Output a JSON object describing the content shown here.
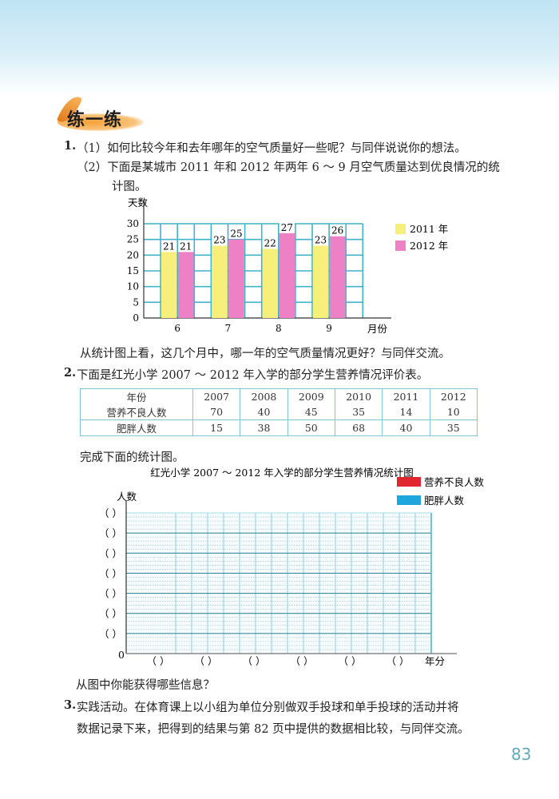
{
  "section_title": "练一练",
  "q1": {
    "number": "1.",
    "part1": "（1）如何比较今年和去年哪年的空气质量好一些呢？与同伴说说你的想法。",
    "part2_line1": "（2）下面是某城市 2011 年和 2012 年两年 6 ～ 9 月空气质量达到优良情况的统",
    "part2_line2": "计图。",
    "question": "从统计图上看，这几个月中，哪一年的空气质量情况更好？与同伴交流。"
  },
  "chart_data": [
    {
      "type": "bar",
      "title": "",
      "ylabel": "天数",
      "xlabel": "月份",
      "categories": [
        "6",
        "7",
        "8",
        "9"
      ],
      "ylim": [
        0,
        30
      ],
      "yticks": [
        0,
        5,
        10,
        15,
        20,
        25,
        30
      ],
      "grid": true,
      "legend_position": "right",
      "series": [
        {
          "name": "2011 年",
          "values": [
            21,
            23,
            22,
            23
          ],
          "color": "#f7ef7c"
        },
        {
          "name": "2012 年",
          "values": [
            21,
            25,
            27,
            26
          ],
          "color": "#ee80c6"
        }
      ]
    },
    {
      "type": "bar",
      "title": "红光小学 2007 ～ 2012 年入学的部分学生营养情况统计图",
      "ylabel": "人数",
      "xlabel": "年分",
      "y_origin_label": "0",
      "y_tick_placeholder": "（   ）",
      "x_tick_placeholder": "（        ）",
      "grid": true,
      "legend_position": "top-right",
      "series": [
        {
          "name": "营养不良人数",
          "color": "#e0262e"
        },
        {
          "name": "肥胖人数",
          "color": "#1fa6dc"
        }
      ]
    }
  ],
  "q2": {
    "number": "2.",
    "intro": "下面是红光小学 2007 ～ 2012 年入学的部分学生营养情况评价表。",
    "table": {
      "header": [
        "年份",
        "2007",
        "2008",
        "2009",
        "2010",
        "2011",
        "2012"
      ],
      "rows": [
        [
          "营养不良人数",
          "70",
          "40",
          "45",
          "35",
          "14",
          "10"
        ],
        [
          "肥胖人数",
          "15",
          "38",
          "50",
          "68",
          "40",
          "35"
        ]
      ]
    },
    "instruction": "完成下面的统计图。",
    "question": "从图中你能获得哪些信息？"
  },
  "q3": {
    "number": "3.",
    "line1": "实践活动。在体育课上以小组为单位分别做双手投球和单手投球的活动并将",
    "line2": "数据记录下来，把得到的结果与第 82 页中提供的数据相比较，与同伴交流。"
  },
  "page_number": "83",
  "colors": {
    "grid": "#3fb3c8",
    "page_number": "#62a8b8"
  }
}
